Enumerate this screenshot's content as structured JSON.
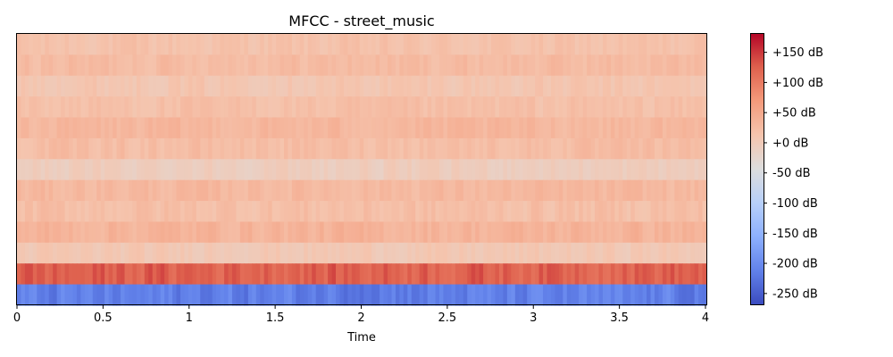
{
  "chart_data": {
    "type": "heatmap",
    "title": "MFCC - street_music",
    "xlabel": "Time",
    "ylabel": "",
    "xlim": [
      0,
      4
    ],
    "x_ticks": [
      0,
      0.5,
      1,
      1.5,
      2,
      2.5,
      3,
      3.5,
      4
    ],
    "x_tick_labels": [
      "0",
      "0.5",
      "1",
      "1.5",
      "2",
      "2.5",
      "3",
      "3.5",
      "4"
    ],
    "n_frames": 173,
    "n_coefficients": 13,
    "colormap": "coolwarm",
    "colorbar": {
      "vmin": -268,
      "vmax": 182,
      "ticks": [
        150,
        100,
        50,
        0,
        -50,
        -100,
        -150,
        -200,
        -250
      ],
      "tick_labels": [
        "+150 dB",
        "+100 dB",
        "+50 dB",
        "+0 dB",
        "-50 dB",
        "-100 dB",
        "-150 dB",
        "-200 dB",
        "-250 dB"
      ]
    },
    "rows_top_to_bottom": [
      {
        "coefficient": 12,
        "mean": 15,
        "spread": 12
      },
      {
        "coefficient": 11,
        "mean": 25,
        "spread": 12
      },
      {
        "coefficient": 10,
        "mean": 10,
        "spread": 12
      },
      {
        "coefficient": 9,
        "mean": 18,
        "spread": 12
      },
      {
        "coefficient": 8,
        "mean": 30,
        "spread": 12
      },
      {
        "coefficient": 7,
        "mean": 22,
        "spread": 12
      },
      {
        "coefficient": 6,
        "mean": -5,
        "spread": 12
      },
      {
        "coefficient": 5,
        "mean": 28,
        "spread": 12
      },
      {
        "coefficient": 4,
        "mean": 20,
        "spread": 14
      },
      {
        "coefficient": 3,
        "mean": 35,
        "spread": 14
      },
      {
        "coefficient": 2,
        "mean": 5,
        "spread": 12
      },
      {
        "coefficient": 1,
        "mean": 125,
        "spread": 22
      },
      {
        "coefficient": 0,
        "mean": -215,
        "spread": 25
      }
    ]
  }
}
